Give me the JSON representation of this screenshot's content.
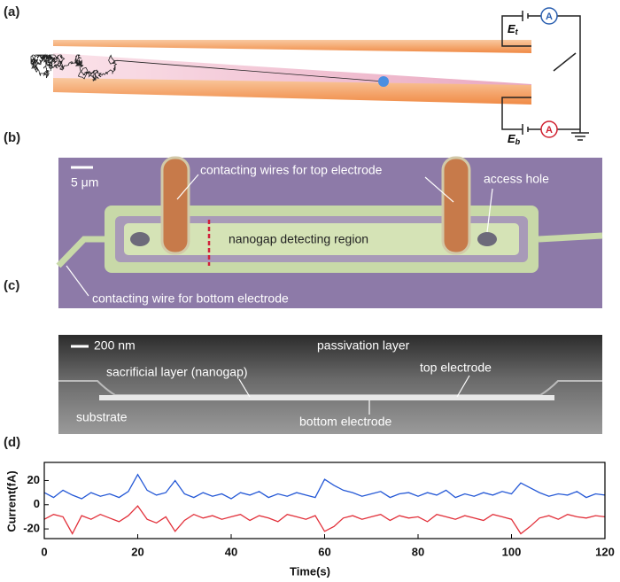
{
  "panel_a": {
    "label": "(a)",
    "e_top": {
      "main": "E",
      "sub": "t"
    },
    "e_bottom": {
      "main": "E",
      "sub": "b"
    },
    "ammeter_top": "A",
    "ammeter_bottom": "A"
  },
  "panel_b": {
    "label": "(b)",
    "scale_bar": "5 μm",
    "annotations": [
      "contacting wires for top electrode",
      "access hole",
      "nanogap detecting region",
      "contacting wire for bottom electrode"
    ]
  },
  "panel_c": {
    "label": "(c)",
    "scale_bar": "200 nm",
    "annotations": [
      "passivation layer",
      "sacrificial layer (nanogap)",
      "top electrode",
      "substrate",
      "bottom electrode"
    ]
  },
  "panel_d": {
    "label": "(d)"
  },
  "chart_data": {
    "type": "line",
    "xlabel": "Time(s)",
    "ylabel": "Current(fA)",
    "x": [
      0,
      2,
      4,
      6,
      8,
      10,
      12,
      14,
      16,
      18,
      20,
      22,
      24,
      26,
      28,
      30,
      32,
      34,
      36,
      38,
      40,
      42,
      44,
      46,
      48,
      50,
      52,
      54,
      56,
      58,
      60,
      62,
      64,
      66,
      68,
      70,
      72,
      74,
      76,
      78,
      80,
      82,
      84,
      86,
      88,
      90,
      92,
      94,
      96,
      98,
      100,
      102,
      104,
      106,
      108,
      110,
      112,
      114,
      116,
      118,
      120
    ],
    "series": [
      {
        "color": "#2458d6",
        "values": [
          10,
          6,
          12,
          8,
          5,
          10,
          7,
          9,
          6,
          11,
          25,
          12,
          8,
          10,
          20,
          9,
          6,
          10,
          7,
          9,
          5,
          10,
          8,
          11,
          6,
          9,
          7,
          10,
          8,
          6,
          21,
          16,
          12,
          10,
          7,
          9,
          11,
          6,
          9,
          10,
          7,
          10,
          8,
          12,
          6,
          9,
          7,
          10,
          8,
          11,
          9,
          18,
          14,
          10,
          7,
          9,
          8,
          11,
          6,
          9,
          8
        ]
      },
      {
        "color": "#e2303a",
        "values": [
          -12,
          -8,
          -10,
          -24,
          -9,
          -12,
          -8,
          -11,
          -14,
          -9,
          -1,
          -12,
          -15,
          -10,
          -22,
          -13,
          -8,
          -11,
          -9,
          -12,
          -10,
          -8,
          -13,
          -9,
          -11,
          -14,
          -8,
          -10,
          -12,
          -9,
          -22,
          -18,
          -11,
          -9,
          -12,
          -10,
          -8,
          -13,
          -9,
          -11,
          -10,
          -14,
          -8,
          -10,
          -12,
          -9,
          -11,
          -13,
          -8,
          -10,
          -12,
          -24,
          -18,
          -11,
          -9,
          -12,
          -8,
          -10,
          -11,
          -9,
          -10
        ]
      }
    ],
    "xlim": [
      0,
      120
    ],
    "xticks": [
      0,
      20,
      40,
      60,
      80,
      100,
      120
    ],
    "ylim": [
      -28,
      35
    ],
    "yticks": [
      -20,
      0,
      20
    ]
  }
}
